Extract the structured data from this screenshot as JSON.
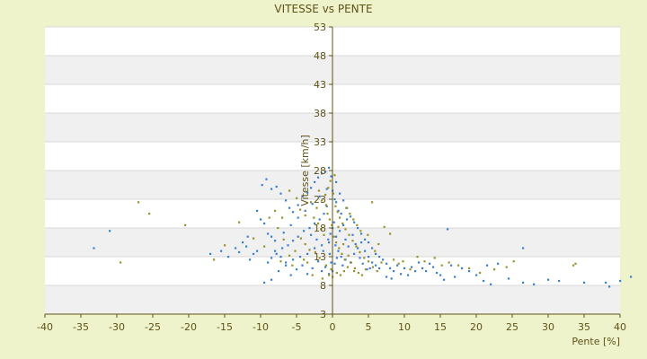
{
  "chart_data": {
    "type": "scatter",
    "title": "VITESSE vs PENTE",
    "xlabel": "Pente [%]",
    "ylabel": "Vitesse [km/h]",
    "xlim": [
      -40,
      40
    ],
    "ylim": [
      3,
      53
    ],
    "x_ticks": [
      "-40",
      "-35",
      "-30",
      "-25",
      "-20",
      "-15",
      "-10",
      "-5",
      "0",
      "5",
      "10",
      "15",
      "20",
      "25",
      "30",
      "35",
      "40"
    ],
    "y_ticks": [
      "3",
      "8",
      "13",
      "18",
      "23",
      "28",
      "33",
      "38",
      "43",
      "48",
      "53"
    ],
    "grid": true,
    "legend": "none",
    "colors": {
      "background": "#eef3cc",
      "band_light": "#ffffff",
      "band_grey": "#f0f0f0",
      "axis": "#5e5218",
      "text": "#5e5218",
      "series_blue": "#3a7fd5",
      "series_olive": "#9a9228"
    },
    "series": [
      {
        "color": "blue",
        "points": [
          [
            -33.2,
            14.5
          ],
          [
            -31.0,
            17.5
          ],
          [
            -17.0,
            13.5
          ],
          [
            -15.5,
            14.0
          ],
          [
            -14.5,
            13.0
          ],
          [
            -13.5,
            14.5
          ],
          [
            -13.0,
            13.8
          ],
          [
            -12.5,
            15.5
          ],
          [
            -12.0,
            14.8
          ],
          [
            -11.5,
            12.5
          ],
          [
            -11.0,
            13.5
          ],
          [
            -10.5,
            14.0
          ],
          [
            -10.0,
            19.5
          ],
          [
            -9.5,
            18.8
          ],
          [
            -9.0,
            17.0
          ],
          [
            -8.5,
            16.5
          ],
          [
            -8.0,
            14.0
          ],
          [
            -9.8,
            25.5
          ],
          [
            -9.2,
            26.5
          ],
          [
            -8.5,
            24.8
          ],
          [
            -7.8,
            25.2
          ],
          [
            -7.2,
            24.0
          ],
          [
            -6.5,
            22.8
          ],
          [
            -6.0,
            21.5
          ],
          [
            -5.5,
            20.8
          ],
          [
            -4.8,
            22.0
          ],
          [
            -4.2,
            23.5
          ],
          [
            -3.5,
            24.2
          ],
          [
            -3.0,
            25.0
          ],
          [
            -2.5,
            26.0
          ],
          [
            -2.0,
            26.8
          ],
          [
            -1.5,
            27.5
          ],
          [
            -1.0,
            27.8
          ],
          [
            -0.5,
            28.5
          ],
          [
            -0.2,
            27.0
          ],
          [
            0.0,
            24.5
          ],
          [
            0.3,
            23.0
          ],
          [
            0.5,
            22.5
          ],
          [
            -0.8,
            21.8
          ],
          [
            -1.2,
            20.5
          ],
          [
            -1.8,
            19.5
          ],
          [
            -2.5,
            18.8
          ],
          [
            -3.2,
            18.0
          ],
          [
            -4.0,
            17.5
          ],
          [
            -4.8,
            16.5
          ],
          [
            -5.5,
            15.8
          ],
          [
            -6.2,
            15.0
          ],
          [
            -7.0,
            14.5
          ],
          [
            -7.8,
            13.5
          ],
          [
            -8.5,
            12.8
          ],
          [
            -9.0,
            12.0
          ],
          [
            -9.5,
            8.5
          ],
          [
            -8.5,
            9.0
          ],
          [
            -7.5,
            10.5
          ],
          [
            -6.5,
            11.5
          ],
          [
            -5.5,
            12.5
          ],
          [
            -4.5,
            13.0
          ],
          [
            -3.5,
            13.5
          ],
          [
            -2.5,
            14.5
          ],
          [
            -1.5,
            15.0
          ],
          [
            -0.5,
            15.5
          ],
          [
            0.5,
            16.5
          ],
          [
            1.0,
            17.5
          ],
          [
            1.5,
            18.5
          ],
          [
            2.0,
            19.5
          ],
          [
            1.2,
            20.5
          ],
          [
            0.8,
            21.0
          ],
          [
            0.2,
            19.0
          ],
          [
            0.0,
            18.0
          ],
          [
            -0.3,
            17.0
          ],
          [
            -0.6,
            16.0
          ],
          [
            0.4,
            15.0
          ],
          [
            0.8,
            14.0
          ],
          [
            1.2,
            13.0
          ],
          [
            1.8,
            12.5
          ],
          [
            2.5,
            12.0
          ],
          [
            3.0,
            13.5
          ],
          [
            3.5,
            14.5
          ],
          [
            4.0,
            15.5
          ],
          [
            4.5,
            14.0
          ],
          [
            5.0,
            13.0
          ],
          [
            5.5,
            12.0
          ],
          [
            6.0,
            11.5
          ],
          [
            6.5,
            11.0
          ],
          [
            7.0,
            12.5
          ],
          [
            7.5,
            11.8
          ],
          [
            8.0,
            11.0
          ],
          [
            8.5,
            10.5
          ],
          [
            9.0,
            11.5
          ],
          [
            9.5,
            10.0
          ],
          [
            10.0,
            11.0
          ],
          [
            10.5,
            9.8
          ],
          [
            11.0,
            11.2
          ],
          [
            11.5,
            10.5
          ],
          [
            12.0,
            12.0
          ],
          [
            12.5,
            11.0
          ],
          [
            13.0,
            10.5
          ],
          [
            13.5,
            11.8
          ],
          [
            14.0,
            11.2
          ],
          [
            14.5,
            10.2
          ],
          [
            15.0,
            9.8
          ],
          [
            15.5,
            9.0
          ],
          [
            16.0,
            17.8
          ],
          [
            16.5,
            11.5
          ],
          [
            17.0,
            9.5
          ],
          [
            18.0,
            11.0
          ],
          [
            19.0,
            10.5
          ],
          [
            20.0,
            9.8
          ],
          [
            21.0,
            8.8
          ],
          [
            22.0,
            8.2
          ],
          [
            21.5,
            11.5
          ],
          [
            23.0,
            11.8
          ],
          [
            24.5,
            9.2
          ],
          [
            26.5,
            14.5
          ],
          [
            26.5,
            8.5
          ],
          [
            28.0,
            8.2
          ],
          [
            30.0,
            9.0
          ],
          [
            31.5,
            8.8
          ],
          [
            35.0,
            8.5
          ],
          [
            38.0,
            8.5
          ],
          [
            38.5,
            7.8
          ],
          [
            40.0,
            8.8
          ],
          [
            41.5,
            9.5
          ],
          [
            0.5,
            26.0
          ],
          [
            1.0,
            24.0
          ],
          [
            1.5,
            22.8
          ],
          [
            2.0,
            21.5
          ],
          [
            2.5,
            20.0
          ],
          [
            3.0,
            19.0
          ],
          [
            3.5,
            18.0
          ],
          [
            4.0,
            17.0
          ],
          [
            4.5,
            16.0
          ],
          [
            5.0,
            15.5
          ],
          [
            5.5,
            14.5
          ],
          [
            6.0,
            13.5
          ],
          [
            6.5,
            13.0
          ],
          [
            -0.2,
            12.0
          ],
          [
            0.0,
            10.5
          ],
          [
            0.3,
            11.8
          ],
          [
            -0.5,
            10.0
          ],
          [
            -1.0,
            11.2
          ],
          [
            -1.5,
            10.5
          ],
          [
            -2.0,
            12.2
          ],
          [
            -2.8,
            11.0
          ],
          [
            -3.5,
            10.0
          ],
          [
            -4.2,
            11.5
          ],
          [
            -5.0,
            10.8
          ],
          [
            -5.8,
            9.8
          ],
          [
            -6.5,
            12.0
          ],
          [
            -7.2,
            13.0
          ],
          [
            -8.0,
            15.8
          ],
          [
            -6.8,
            17.2
          ],
          [
            -5.8,
            18.5
          ],
          [
            -4.8,
            19.8
          ],
          [
            -3.8,
            21.0
          ],
          [
            -2.8,
            22.2
          ],
          [
            -1.8,
            23.5
          ],
          [
            -0.8,
            24.8
          ],
          [
            1.8,
            16.0
          ],
          [
            2.2,
            14.8
          ],
          [
            2.8,
            16.8
          ],
          [
            3.2,
            15.2
          ],
          [
            3.8,
            12.8
          ],
          [
            4.2,
            11.8
          ],
          [
            4.8,
            10.8
          ],
          [
            5.2,
            11.0
          ],
          [
            7.5,
            9.5
          ],
          [
            8.2,
            9.2
          ],
          [
            -0.4,
            13.5
          ],
          [
            0.6,
            12.8
          ],
          [
            1.4,
            11.5
          ],
          [
            -1.3,
            14.0
          ],
          [
            -2.2,
            16.0
          ],
          [
            -3.0,
            16.8
          ],
          [
            -10.5,
            21.0
          ],
          [
            -11.8,
            16.5
          ]
        ]
      },
      {
        "color": "olive",
        "points": [
          [
            -29.5,
            12.0
          ],
          [
            -27.0,
            22.5
          ],
          [
            -25.5,
            20.5
          ],
          [
            -20.5,
            18.5
          ],
          [
            -16.5,
            12.5
          ],
          [
            -15.0,
            15.0
          ],
          [
            -13.0,
            19.0
          ],
          [
            -11.0,
            16.2
          ],
          [
            -9.5,
            14.8
          ],
          [
            -8.0,
            21.0
          ],
          [
            -7.0,
            19.8
          ],
          [
            -6.0,
            24.5
          ],
          [
            -5.0,
            23.2
          ],
          [
            -4.5,
            21.2
          ],
          [
            -3.8,
            20.2
          ],
          [
            -3.0,
            22.5
          ],
          [
            -2.2,
            21.5
          ],
          [
            -1.5,
            22.8
          ],
          [
            -1.0,
            23.8
          ],
          [
            -0.6,
            25.0
          ],
          [
            -0.3,
            26.2
          ],
          [
            0.1,
            24.0
          ],
          [
            0.4,
            21.8
          ],
          [
            0.7,
            20.8
          ],
          [
            1.0,
            19.8
          ],
          [
            1.4,
            18.8
          ],
          [
            1.8,
            17.8
          ],
          [
            2.3,
            16.8
          ],
          [
            2.8,
            15.8
          ],
          [
            3.3,
            14.8
          ],
          [
            3.8,
            13.8
          ],
          [
            4.4,
            12.8
          ],
          [
            5.0,
            12.2
          ],
          [
            5.6,
            11.2
          ],
          [
            6.2,
            10.5
          ],
          [
            6.8,
            12.0
          ],
          [
            7.2,
            18.2
          ],
          [
            8.0,
            17.0
          ],
          [
            8.5,
            12.5
          ],
          [
            9.2,
            11.8
          ],
          [
            9.8,
            12.2
          ],
          [
            10.8,
            10.8
          ],
          [
            11.8,
            13.0
          ],
          [
            12.8,
            12.2
          ],
          [
            14.2,
            12.8
          ],
          [
            15.2,
            11.5
          ],
          [
            16.2,
            12.0
          ],
          [
            17.5,
            11.5
          ],
          [
            19.0,
            11.0
          ],
          [
            20.5,
            10.2
          ],
          [
            22.5,
            10.8
          ],
          [
            24.2,
            11.2
          ],
          [
            25.2,
            12.2
          ],
          [
            33.5,
            11.5
          ],
          [
            33.8,
            11.8
          ],
          [
            5.5,
            22.5
          ],
          [
            -0.1,
            18.5
          ],
          [
            -0.4,
            19.5
          ],
          [
            -0.7,
            20.5
          ],
          [
            0.2,
            16.5
          ],
          [
            0.5,
            15.5
          ],
          [
            0.9,
            14.5
          ],
          [
            1.3,
            13.5
          ],
          [
            1.7,
            12.5
          ],
          [
            -1.2,
            16.8
          ],
          [
            -1.6,
            17.8
          ],
          [
            -2.0,
            18.8
          ],
          [
            -2.6,
            19.8
          ],
          [
            -3.2,
            14.2
          ],
          [
            -3.8,
            15.2
          ],
          [
            -4.4,
            16.2
          ],
          [
            -5.2,
            14.0
          ],
          [
            -6.0,
            13.2
          ],
          [
            -6.8,
            16.0
          ],
          [
            -7.6,
            18.0
          ],
          [
            -8.8,
            19.8
          ],
          [
            -1.8,
            12.8
          ],
          [
            -2.4,
            13.8
          ],
          [
            -0.9,
            11.5
          ],
          [
            -0.2,
            10.8
          ],
          [
            0.6,
            10.2
          ],
          [
            1.1,
            9.8
          ],
          [
            1.6,
            10.5
          ],
          [
            2.1,
            11.2
          ],
          [
            2.6,
            12.0
          ],
          [
            3.1,
            11.0
          ],
          [
            3.6,
            10.2
          ],
          [
            4.1,
            9.8
          ],
          [
            4.6,
            10.8
          ],
          [
            -0.5,
            9.8
          ],
          [
            0.0,
            9.5
          ],
          [
            -1.4,
            9.2
          ],
          [
            -2.8,
            9.8
          ],
          [
            -4.0,
            12.5
          ],
          [
            -5.6,
            11.5
          ],
          [
            -7.2,
            12.2
          ],
          [
            1.9,
            21.5
          ],
          [
            2.4,
            20.5
          ],
          [
            2.9,
            19.5
          ],
          [
            3.4,
            18.5
          ],
          [
            3.9,
            17.5
          ],
          [
            4.9,
            16.8
          ],
          [
            5.9,
            14.0
          ],
          [
            6.4,
            15.2
          ],
          [
            0.3,
            27.2
          ],
          [
            -0.9,
            22.0
          ],
          [
            -1.9,
            24.5
          ],
          [
            0.8,
            18.2
          ],
          [
            1.5,
            15.2
          ],
          [
            2.2,
            13.2
          ],
          [
            3.0,
            10.5
          ],
          [
            -3.5,
            12.0
          ]
        ]
      }
    ]
  }
}
